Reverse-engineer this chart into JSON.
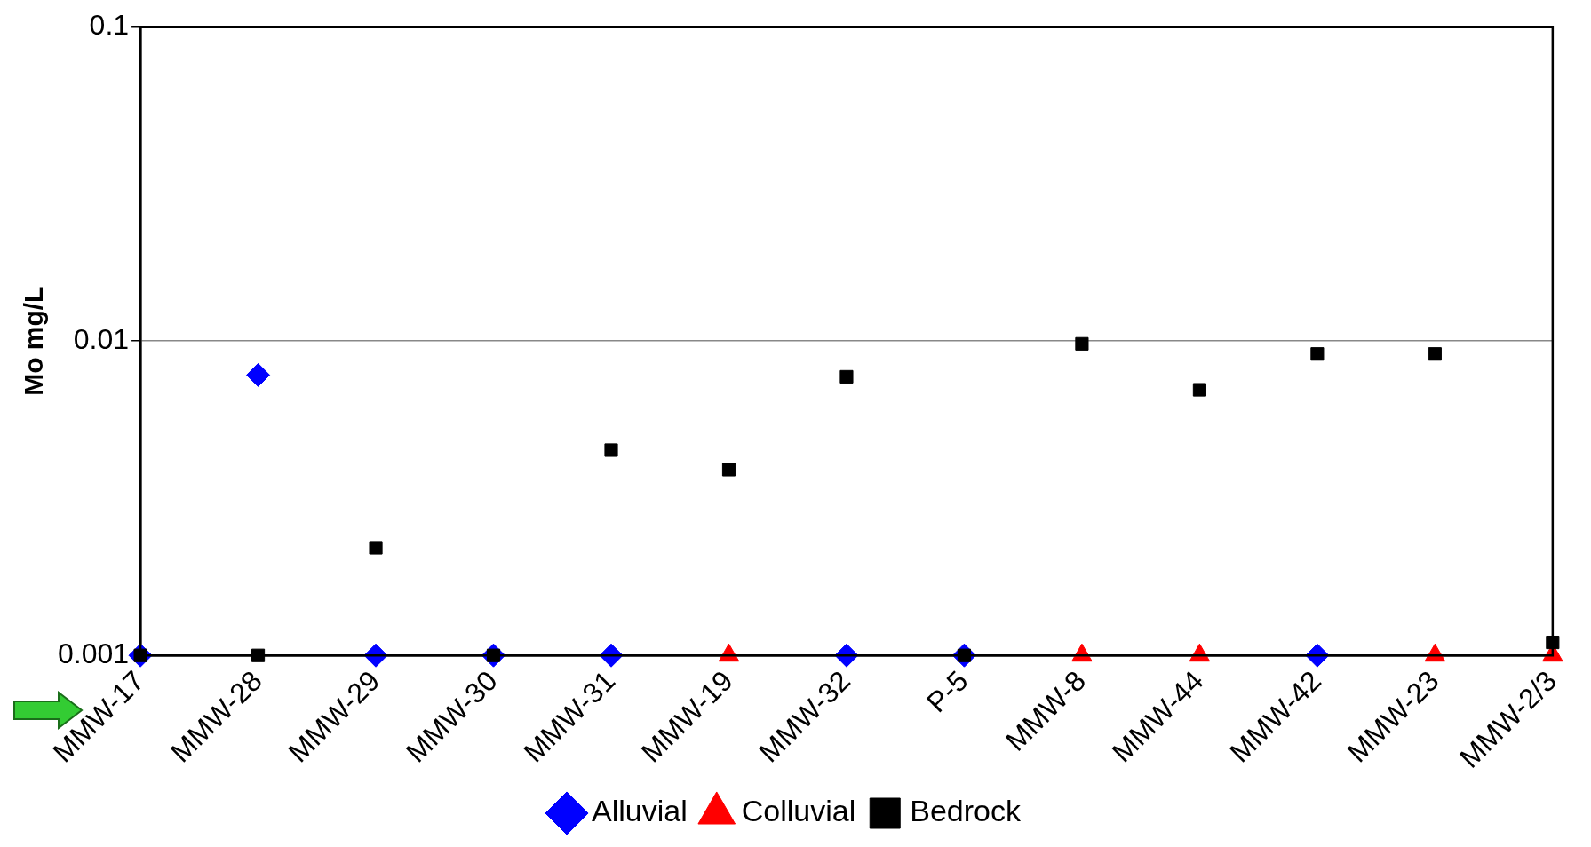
{
  "chart_data": {
    "type": "scatter",
    "ylabel": "Mo mg/L",
    "categories": [
      "MMW-17",
      "MMW-28",
      "MMW-29",
      "MMW-30",
      "MMW-31",
      "MMW-19",
      "MMW-32",
      "P-5",
      "MMW-8",
      "MMW-44",
      "MMW-42",
      "MMW-23",
      "MMW-2/3"
    ],
    "series": [
      {
        "name": "Alluvial",
        "color": "#0000ff",
        "marker": "diamond",
        "values": [
          0.001,
          0.0078,
          0.001,
          0.001,
          0.001,
          null,
          0.001,
          0.001,
          null,
          null,
          0.001,
          null,
          null
        ]
      },
      {
        "name": "Colluvial",
        "color": "#ff0000",
        "marker": "triangle",
        "values": [
          null,
          null,
          null,
          null,
          null,
          0.001,
          null,
          null,
          0.001,
          0.001,
          null,
          0.001,
          0.001
        ]
      },
      {
        "name": "Bedrock",
        "color": "#000000",
        "marker": "square",
        "values": [
          0.001,
          0.001,
          0.0022,
          0.001,
          0.0045,
          0.0039,
          0.0077,
          0.001,
          0.0098,
          0.007,
          0.0091,
          0.0091,
          0.0011
        ]
      }
    ],
    "log": true,
    "ylim": [
      0.001,
      0.1
    ],
    "yticks": [
      0.001,
      0.01,
      0.1
    ],
    "grid": "y",
    "legend": "bottom"
  }
}
